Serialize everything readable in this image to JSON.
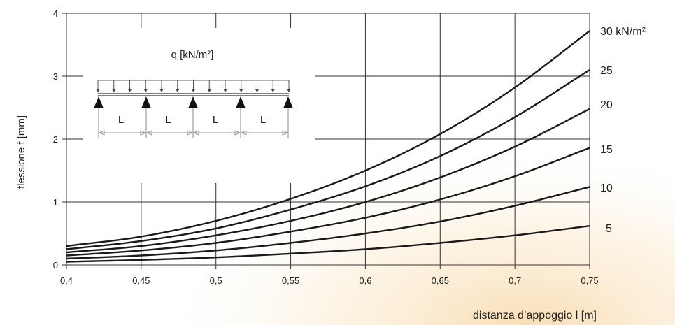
{
  "chart_data": {
    "type": "line",
    "ylabel": "flessione f [mm]",
    "xlabel": "distanza d’appoggio l [m]",
    "xlim": [
      0.4,
      0.75
    ],
    "ylim": [
      0,
      4
    ],
    "x_ticks": [
      0.4,
      0.45,
      0.5,
      0.55,
      0.6,
      0.65,
      0.7,
      0.75
    ],
    "x_tick_labels": [
      "0,4",
      "0,45",
      "0,5",
      "0,55",
      "0,6",
      "0,65",
      "0,7",
      "0,75"
    ],
    "y_ticks": [
      0,
      1,
      2,
      3,
      4
    ],
    "y_tick_labels": [
      "0",
      "1",
      "2",
      "3",
      "4"
    ],
    "grid": true,
    "x": [
      0.4,
      0.45,
      0.5,
      0.55,
      0.6,
      0.65,
      0.7,
      0.75
    ],
    "series": [
      {
        "name": "30 kN/m²",
        "values": [
          0.3,
          0.45,
          0.7,
          1.05,
          1.5,
          2.08,
          2.82,
          3.72
        ]
      },
      {
        "name": "25",
        "values": [
          0.25,
          0.38,
          0.58,
          0.88,
          1.25,
          1.73,
          2.35,
          3.1
        ]
      },
      {
        "name": "20",
        "values": [
          0.2,
          0.3,
          0.47,
          0.7,
          1.0,
          1.39,
          1.88,
          2.48
        ]
      },
      {
        "name": "15",
        "values": [
          0.15,
          0.23,
          0.35,
          0.53,
          0.75,
          1.04,
          1.41,
          1.86
        ]
      },
      {
        "name": "10",
        "values": [
          0.1,
          0.15,
          0.23,
          0.35,
          0.5,
          0.69,
          0.94,
          1.24
        ]
      },
      {
        "name": "5",
        "values": [
          0.05,
          0.08,
          0.12,
          0.18,
          0.25,
          0.35,
          0.47,
          0.62
        ]
      }
    ],
    "inset": {
      "load_label": "q [kN/m²]",
      "span_labels": [
        "L",
        "L",
        "L",
        "L"
      ]
    }
  },
  "colors": {
    "line": "#1a1a1a",
    "grid": "#333333",
    "glow": "#f4c47a"
  }
}
